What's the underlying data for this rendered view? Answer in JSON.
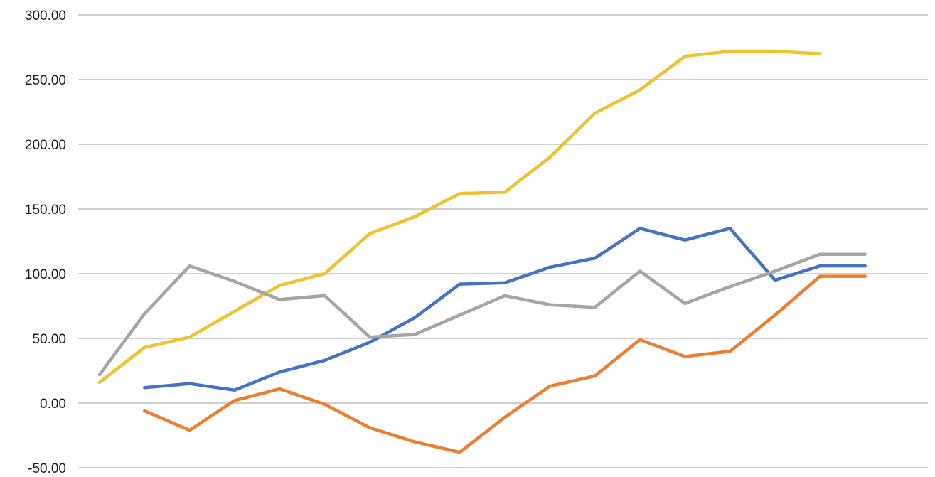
{
  "chart_data": {
    "type": "line",
    "title": "",
    "xlabel": "",
    "ylabel": "",
    "ylim": [
      -50,
      300
    ],
    "yticks": [
      "300.00",
      "250.00",
      "200.00",
      "150.00",
      "100.00",
      "50.00",
      "0.00",
      "-50.00"
    ],
    "grid": true,
    "legend": "none",
    "x": [
      1,
      2,
      3,
      4,
      5,
      6,
      7,
      8,
      9,
      10,
      11,
      12,
      13,
      14,
      15,
      16,
      17,
      18,
      19
    ],
    "series": [
      {
        "color": "#f2c12e",
        "values": [
          16,
          43,
          51,
          71,
          91,
          100,
          131,
          144,
          162,
          163,
          190,
          224,
          242,
          268,
          272,
          272,
          270,
          null,
          null
        ]
      },
      {
        "color": "#4472c4",
        "values": [
          null,
          12,
          15,
          10,
          24,
          33,
          47,
          66,
          92,
          93,
          105,
          112,
          135,
          126,
          135,
          95,
          106,
          106,
          null
        ]
      },
      {
        "color": "#a5a5a5",
        "values": [
          22,
          69,
          106,
          94,
          80,
          83,
          51,
          53,
          68,
          83,
          76,
          74,
          102,
          77,
          90,
          102,
          115,
          115,
          null
        ]
      },
      {
        "color": "#ed7d31",
        "values": [
          null,
          -6,
          -21,
          2,
          11,
          -1,
          -19,
          -30,
          -38,
          -11,
          13,
          21,
          49,
          36,
          40,
          68,
          98,
          98,
          null
        ]
      }
    ]
  }
}
